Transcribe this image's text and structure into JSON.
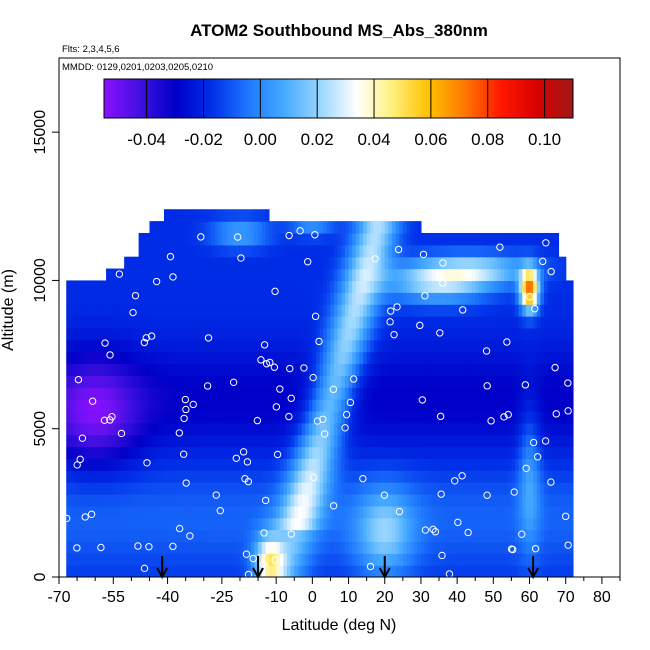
{
  "chart_data": {
    "type": "heatmap",
    "title": "ATOM2 Southbound MS_Abs_380nm",
    "flights_note": "Flts: 2,3,4,5,6",
    "dates_note": "MMDD: 0129,0201,0203,0205,0210",
    "xlabel": "Latitude (deg N)",
    "ylabel": "Altitude (m)",
    "xlim": [
      -70,
      85
    ],
    "ylim": [
      0,
      17500
    ],
    "x_ticks": [
      "-70",
      "-55",
      "-40",
      "-25",
      "-10",
      "0",
      "10",
      "20",
      "30",
      "40",
      "50",
      "60",
      "70",
      "80"
    ],
    "x_tick_values": [
      -70,
      -55,
      -40,
      -25,
      -10,
      0,
      10,
      20,
      30,
      40,
      50,
      60,
      70,
      80
    ],
    "x_minor_ticks": [
      -65,
      -60,
      -50,
      -45,
      -35,
      -30,
      -20,
      -15,
      -5,
      5,
      15,
      25,
      35,
      45,
      55,
      65,
      75,
      85
    ],
    "y_ticks": [
      "0",
      "5000",
      "10000",
      "15000"
    ],
    "y_tick_values": [
      0,
      5000,
      10000,
      15000
    ],
    "colorbar": {
      "range": [
        -0.055,
        0.11
      ],
      "ticks": [
        "-0.04",
        "-0.02",
        "0.00",
        "0.02",
        "0.04",
        "0.06",
        "0.08",
        "0.10"
      ],
      "tick_values": [
        -0.04,
        -0.02,
        0.0,
        0.02,
        0.04,
        0.06,
        0.08,
        0.1
      ],
      "colors": [
        "#8b10ff",
        "#4010e0",
        "#0000c8",
        "#0030e8",
        "#1e78ff",
        "#46aaff",
        "#9ad6ff",
        "#ffffff",
        "#ffef7a",
        "#ffc000",
        "#ff7800",
        "#ff1800",
        "#d80000",
        "#a01818"
      ]
    },
    "profile_arrows_lat": [
      -41.5,
      -15,
      20,
      61
    ],
    "grid": false
  }
}
